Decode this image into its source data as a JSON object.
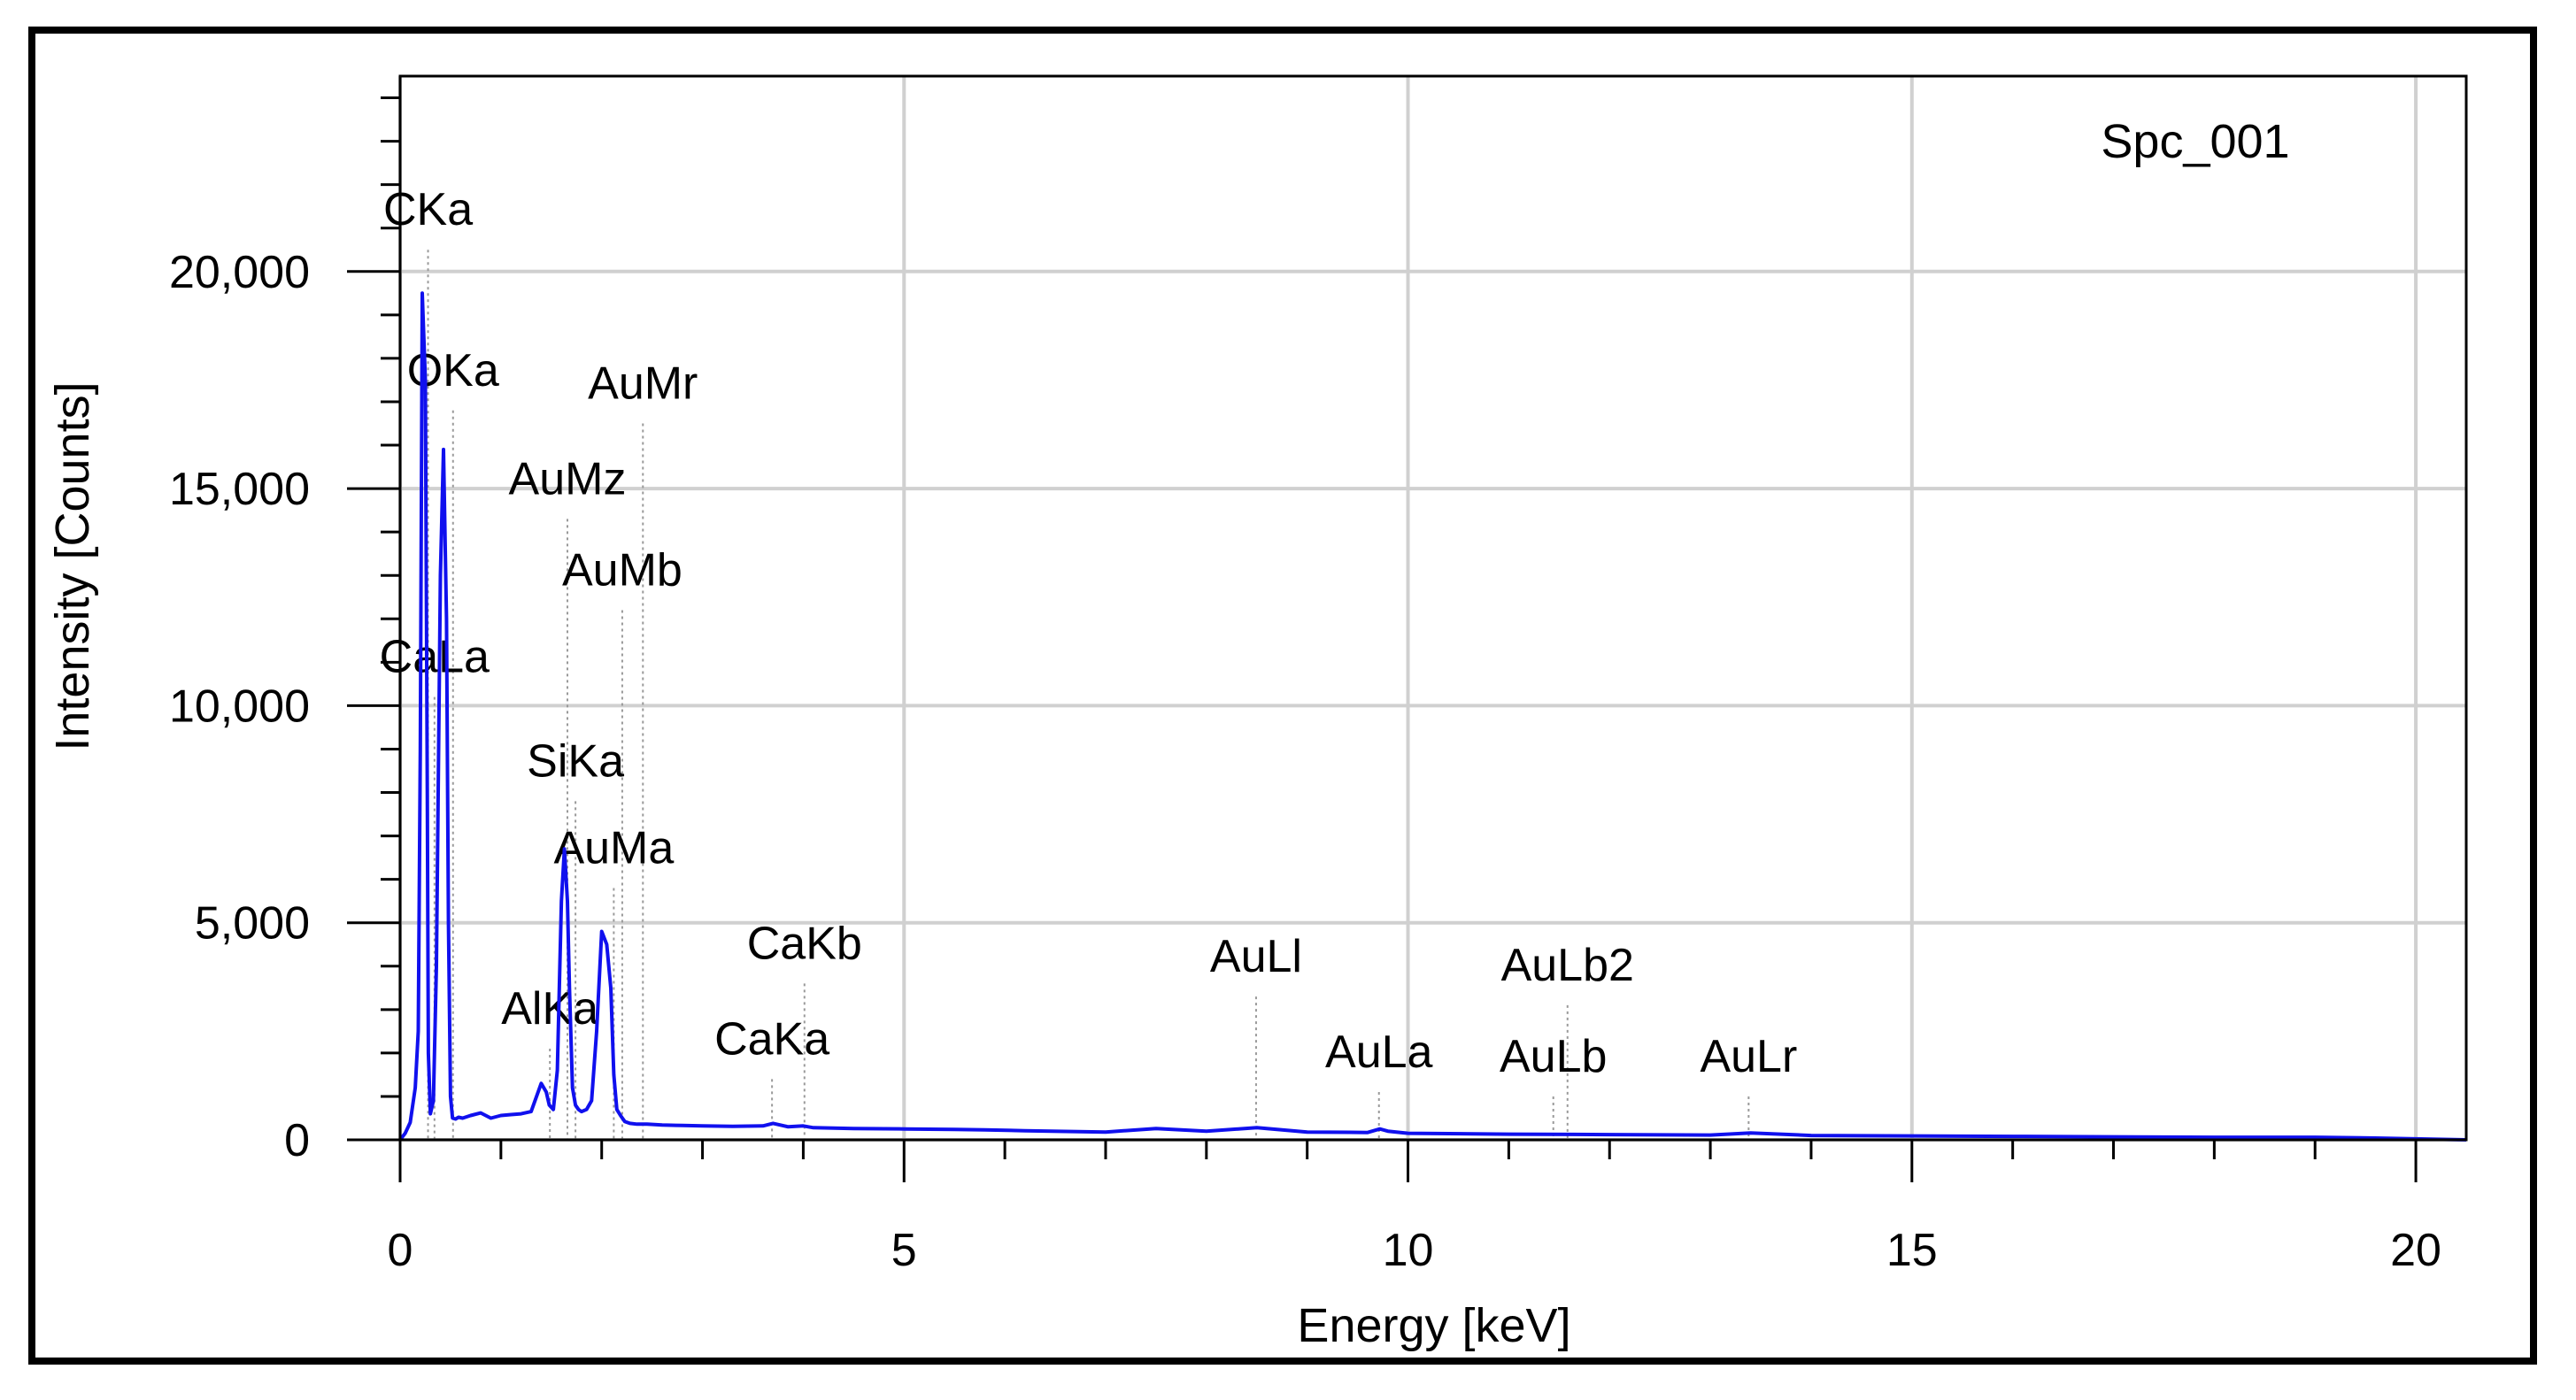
{
  "chart_data": {
    "type": "line",
    "title": "",
    "legend_text": "Spc_001",
    "xlabel": "Energy [keV]",
    "ylabel": "Intensity [Counts]",
    "xlim": [
      0,
      20.5
    ],
    "ylim": [
      0,
      24500
    ],
    "x_ticks": [
      0,
      5,
      10,
      15,
      20
    ],
    "x_tick_labels": [
      "0",
      "5",
      "10",
      "15",
      "20"
    ],
    "y_ticks": [
      0,
      5000,
      10000,
      15000,
      20000
    ],
    "y_tick_labels": [
      "0",
      "5,000",
      "10,000",
      "15,000",
      "20,000"
    ],
    "grid": true,
    "series_color": "#1010ee",
    "series": [
      {
        "name": "Spc_001",
        "x": [
          0.0,
          0.05,
          0.1,
          0.15,
          0.18,
          0.2,
          0.22,
          0.25,
          0.27,
          0.28,
          0.3,
          0.33,
          0.36,
          0.4,
          0.43,
          0.46,
          0.48,
          0.5,
          0.52,
          0.55,
          0.58,
          0.62,
          0.7,
          0.8,
          0.9,
          1.0,
          1.1,
          1.2,
          1.3,
          1.4,
          1.45,
          1.48,
          1.52,
          1.56,
          1.6,
          1.63,
          1.66,
          1.68,
          1.71,
          1.74,
          1.77,
          1.8,
          1.85,
          1.9,
          1.95,
          2.0,
          2.05,
          2.09,
          2.12,
          2.15,
          2.19,
          2.23,
          2.28,
          2.35,
          2.45,
          2.6,
          2.8,
          3.0,
          3.3,
          3.6,
          3.7,
          3.85,
          4.0,
          4.1,
          4.5,
          5.0,
          5.5,
          5.8,
          6.2,
          7.0,
          7.5,
          8.0,
          8.5,
          9.0,
          9.6,
          9.72,
          9.8,
          10.0,
          11.0,
          12.0,
          13.0,
          13.4,
          14.0,
          15.0,
          16.0,
          17.0,
          18.0,
          19.0,
          19.6,
          20.5
        ],
        "y": [
          0,
          150,
          400,
          1200,
          2500,
          9000,
          19500,
          17500,
          8000,
          2000,
          600,
          900,
          4000,
          13000,
          15900,
          12000,
          5000,
          1000,
          500,
          480,
          520,
          500,
          560,
          620,
          500,
          560,
          580,
          600,
          650,
          1300,
          1100,
          800,
          700,
          1600,
          5500,
          6700,
          5500,
          3500,
          1200,
          800,
          700,
          650,
          700,
          900,
          2500,
          4800,
          4500,
          3500,
          1500,
          700,
          550,
          420,
          380,
          360,
          360,
          340,
          330,
          320,
          310,
          320,
          380,
          300,
          320,
          280,
          260,
          250,
          240,
          230,
          210,
          180,
          260,
          200,
          280,
          180,
          170,
          250,
          200,
          150,
          130,
          120,
          110,
          160,
          100,
          90,
          80,
          70,
          60,
          60,
          40,
          0
        ]
      }
    ],
    "annotations": [
      {
        "label": "CKa",
        "energy": 0.277,
        "line_top": 20500
      },
      {
        "label": "OKa",
        "energy": 0.525,
        "line_top": 16800
      },
      {
        "label": "CaLa",
        "energy": 0.341,
        "line_top": 10200
      },
      {
        "label": "AuMr",
        "energy": 2.409,
        "line_top": 16500
      },
      {
        "label": "AuMz",
        "energy": 1.66,
        "line_top": 14300
      },
      {
        "label": "AuMb",
        "energy": 2.204,
        "line_top": 12200
      },
      {
        "label": "SiKa",
        "energy": 1.74,
        "line_top": 7800
      },
      {
        "label": "AuMa",
        "energy": 2.12,
        "line_top": 5800
      },
      {
        "label": "AlKa",
        "energy": 1.486,
        "line_top": 2100
      },
      {
        "label": "CaKb",
        "energy": 4.012,
        "line_top": 3600
      },
      {
        "label": "CaKa",
        "energy": 3.69,
        "line_top": 1400
      },
      {
        "label": "AuLl",
        "energy": 8.493,
        "line_top": 3300
      },
      {
        "label": "AuLa",
        "energy": 9.712,
        "line_top": 1100
      },
      {
        "label": "AuLb2",
        "energy": 11.583,
        "line_top": 3100
      },
      {
        "label": "AuLb",
        "energy": 11.442,
        "line_top": 1000
      },
      {
        "label": "AuLr",
        "energy": 13.38,
        "line_top": 1000
      }
    ]
  }
}
